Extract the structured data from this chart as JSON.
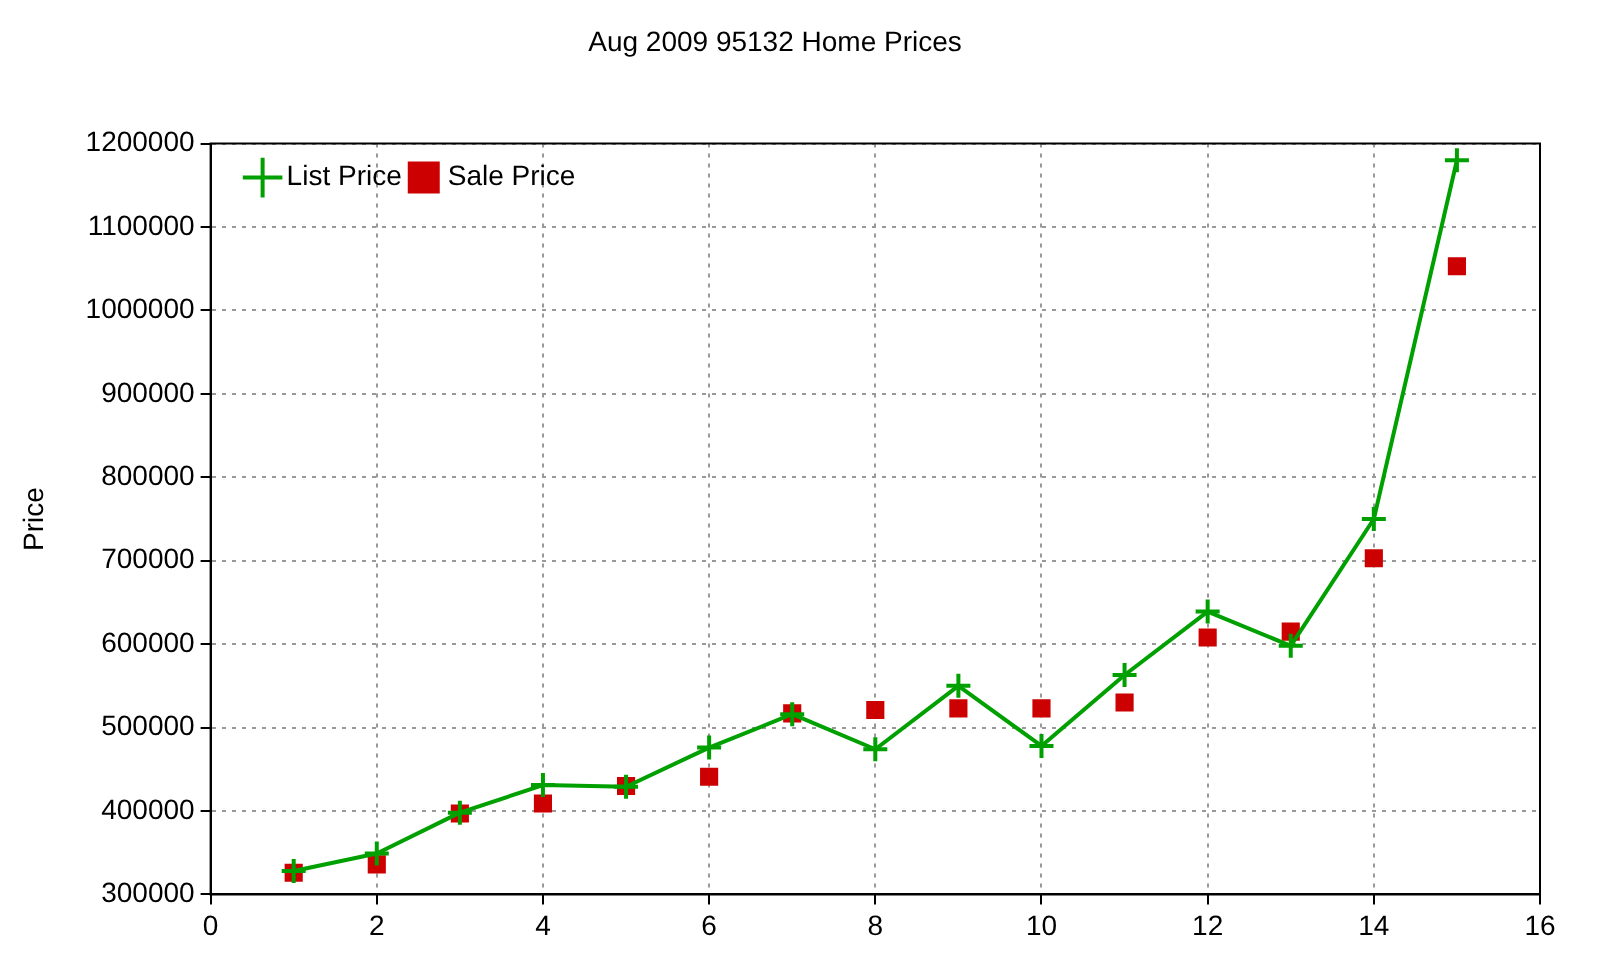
{
  "chart_data": {
    "type": "line",
    "title": "Aug 2009 95132 Home Prices",
    "ylabel": "Price",
    "x": [
      1,
      2,
      3,
      4,
      5,
      6,
      7,
      8,
      9,
      10,
      11,
      12,
      13,
      14,
      15
    ],
    "series": [
      {
        "name": "List Price",
        "type": "line",
        "color": "#00a000",
        "marker": "cross",
        "values": [
          328000,
          349000,
          398000,
          431000,
          429000,
          476000,
          516000,
          474000,
          550000,
          478000,
          563000,
          639000,
          598000,
          750000,
          1180000
        ]
      },
      {
        "name": "Sale Price",
        "type": "scatter",
        "color": "#cc0000",
        "marker": "square",
        "values": [
          326000,
          336000,
          397000,
          409000,
          430000,
          441000,
          517000,
          521000,
          523000,
          523000,
          530000,
          608000,
          615000,
          703000,
          1053000
        ]
      }
    ],
    "xlim": [
      0,
      16
    ],
    "xticks": [
      0,
      2,
      4,
      6,
      8,
      10,
      12,
      14,
      16
    ],
    "ylim": [
      300000,
      1200000
    ],
    "yticks": [
      300000,
      400000,
      500000,
      600000,
      700000,
      800000,
      900000,
      1000000,
      1100000,
      1200000
    ],
    "grid": true,
    "legend": "top left"
  }
}
